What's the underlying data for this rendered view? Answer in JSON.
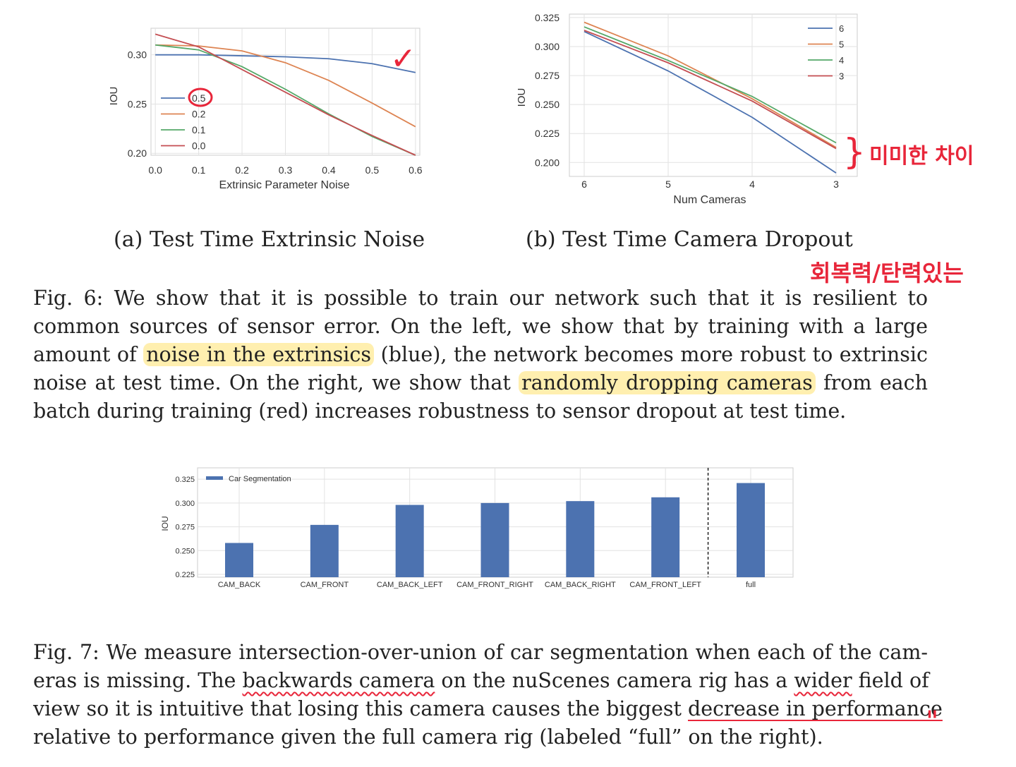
{
  "annotations": {
    "checkmark_glyph": "✓",
    "brace_glyph": "}",
    "note_small_diff": "미미한 차이",
    "note_resilient": "회복력/탄력있는",
    "quote_marks": "\""
  },
  "chart_data": [
    {
      "type": "line",
      "xlabel": "Extrinsic Parameter Noise",
      "ylabel": "IOU",
      "x": [
        0.0,
        0.1,
        0.2,
        0.3,
        0.4,
        0.5,
        0.6
      ],
      "x_ticks": [
        "0.0",
        "0.1",
        "0.2",
        "0.3",
        "0.4",
        "0.5",
        "0.6"
      ],
      "y_ticks": [
        "0.20",
        "0.25",
        "0.30"
      ],
      "ylim": [
        0.198,
        0.327
      ],
      "xlim": [
        -0.01,
        0.61
      ],
      "grid": true,
      "legend": "center-left",
      "series": [
        {
          "name": "0.5",
          "color": "#4c72b0",
          "values": [
            0.3,
            0.3,
            0.299,
            0.298,
            0.296,
            0.291,
            0.282
          ]
        },
        {
          "name": "0.2",
          "color": "#dd8452",
          "values": [
            0.31,
            0.309,
            0.304,
            0.292,
            0.274,
            0.251,
            0.227
          ]
        },
        {
          "name": "0.1",
          "color": "#55a868",
          "values": [
            0.31,
            0.305,
            0.288,
            0.265,
            0.24,
            0.217,
            0.198
          ]
        },
        {
          "name": "0.0",
          "color": "#c44e52",
          "values": [
            0.321,
            0.308,
            0.285,
            0.262,
            0.239,
            0.218,
            0.198
          ]
        }
      ]
    },
    {
      "type": "line",
      "xlabel": "Num Cameras",
      "ylabel": "IOU",
      "x": [
        6,
        5,
        4,
        3
      ],
      "x_ticks": [
        "6",
        "5",
        "4",
        "3"
      ],
      "y_ticks": [
        "0.200",
        "0.225",
        "0.250",
        "0.275",
        "0.300",
        "0.325"
      ],
      "ylim": [
        0.188,
        0.328
      ],
      "grid": true,
      "legend": "top-right",
      "series": [
        {
          "name": "6",
          "color": "#4c72b0",
          "values": [
            0.313,
            0.279,
            0.239,
            0.191
          ]
        },
        {
          "name": "5",
          "color": "#dd8452",
          "values": [
            0.321,
            0.292,
            0.255,
            0.213
          ]
        },
        {
          "name": "4",
          "color": "#55a868",
          "values": [
            0.317,
            0.288,
            0.257,
            0.217
          ]
        },
        {
          "name": "3",
          "color": "#c44e52",
          "values": [
            0.314,
            0.286,
            0.253,
            0.212
          ]
        }
      ]
    },
    {
      "type": "bar",
      "ylabel": "IOU",
      "categories": [
        "CAM_BACK",
        "CAM_FRONT",
        "CAM_BACK_LEFT",
        "CAM_FRONT_RIGHT",
        "CAM_BACK_RIGHT",
        "CAM_FRONT_LEFT",
        "full"
      ],
      "y_ticks": [
        "0.225",
        "0.250",
        "0.275",
        "0.300",
        "0.325"
      ],
      "ylim": [
        0.222,
        0.337
      ],
      "grid": true,
      "legend": "top-left",
      "series": [
        {
          "name": "Car Segmentation",
          "color": "#4c72b0",
          "values": [
            0.258,
            0.277,
            0.298,
            0.3,
            0.302,
            0.306,
            0.321
          ]
        }
      ],
      "separator_before": "full"
    }
  ],
  "captions": {
    "sub_a": "(a) Test Time Extrinsic Noise",
    "sub_b": "(b) Test Time Camera Dropout",
    "fig6": {
      "l1": "Fig. 6: We show that it is possible to train our network such that it is resilient to",
      "l2": "common sources of sensor error. On the left, we show that by training with a large",
      "l3_a": "amount of ",
      "l3_hl": "noise in the extrinsics",
      "l3_b": " (blue), the network becomes more robust to extrinsic",
      "l4_a": "noise at test time. On the right, we show that ",
      "l4_hl": "randomly dropping cameras",
      "l4_b": " from each",
      "l5": "batch during training (red) increases robustness to sensor dropout at test time."
    },
    "fig7": {
      "l1": "Fig. 7: We measure intersection-over-union of car segmentation when each of the cam-",
      "l2_a": "eras is missing. The ",
      "l2_u": "backwards camera",
      "l2_b": " on the nuScenes camera rig has a ",
      "l2_w": "wider",
      "l2_c": " field of",
      "l3_a": "view so it is intuitive that losing this camera causes the biggest ",
      "l3_u": "decrease in performance",
      "l4": "relative to performance given the full camera rig (labeled “full” on the right)."
    }
  }
}
